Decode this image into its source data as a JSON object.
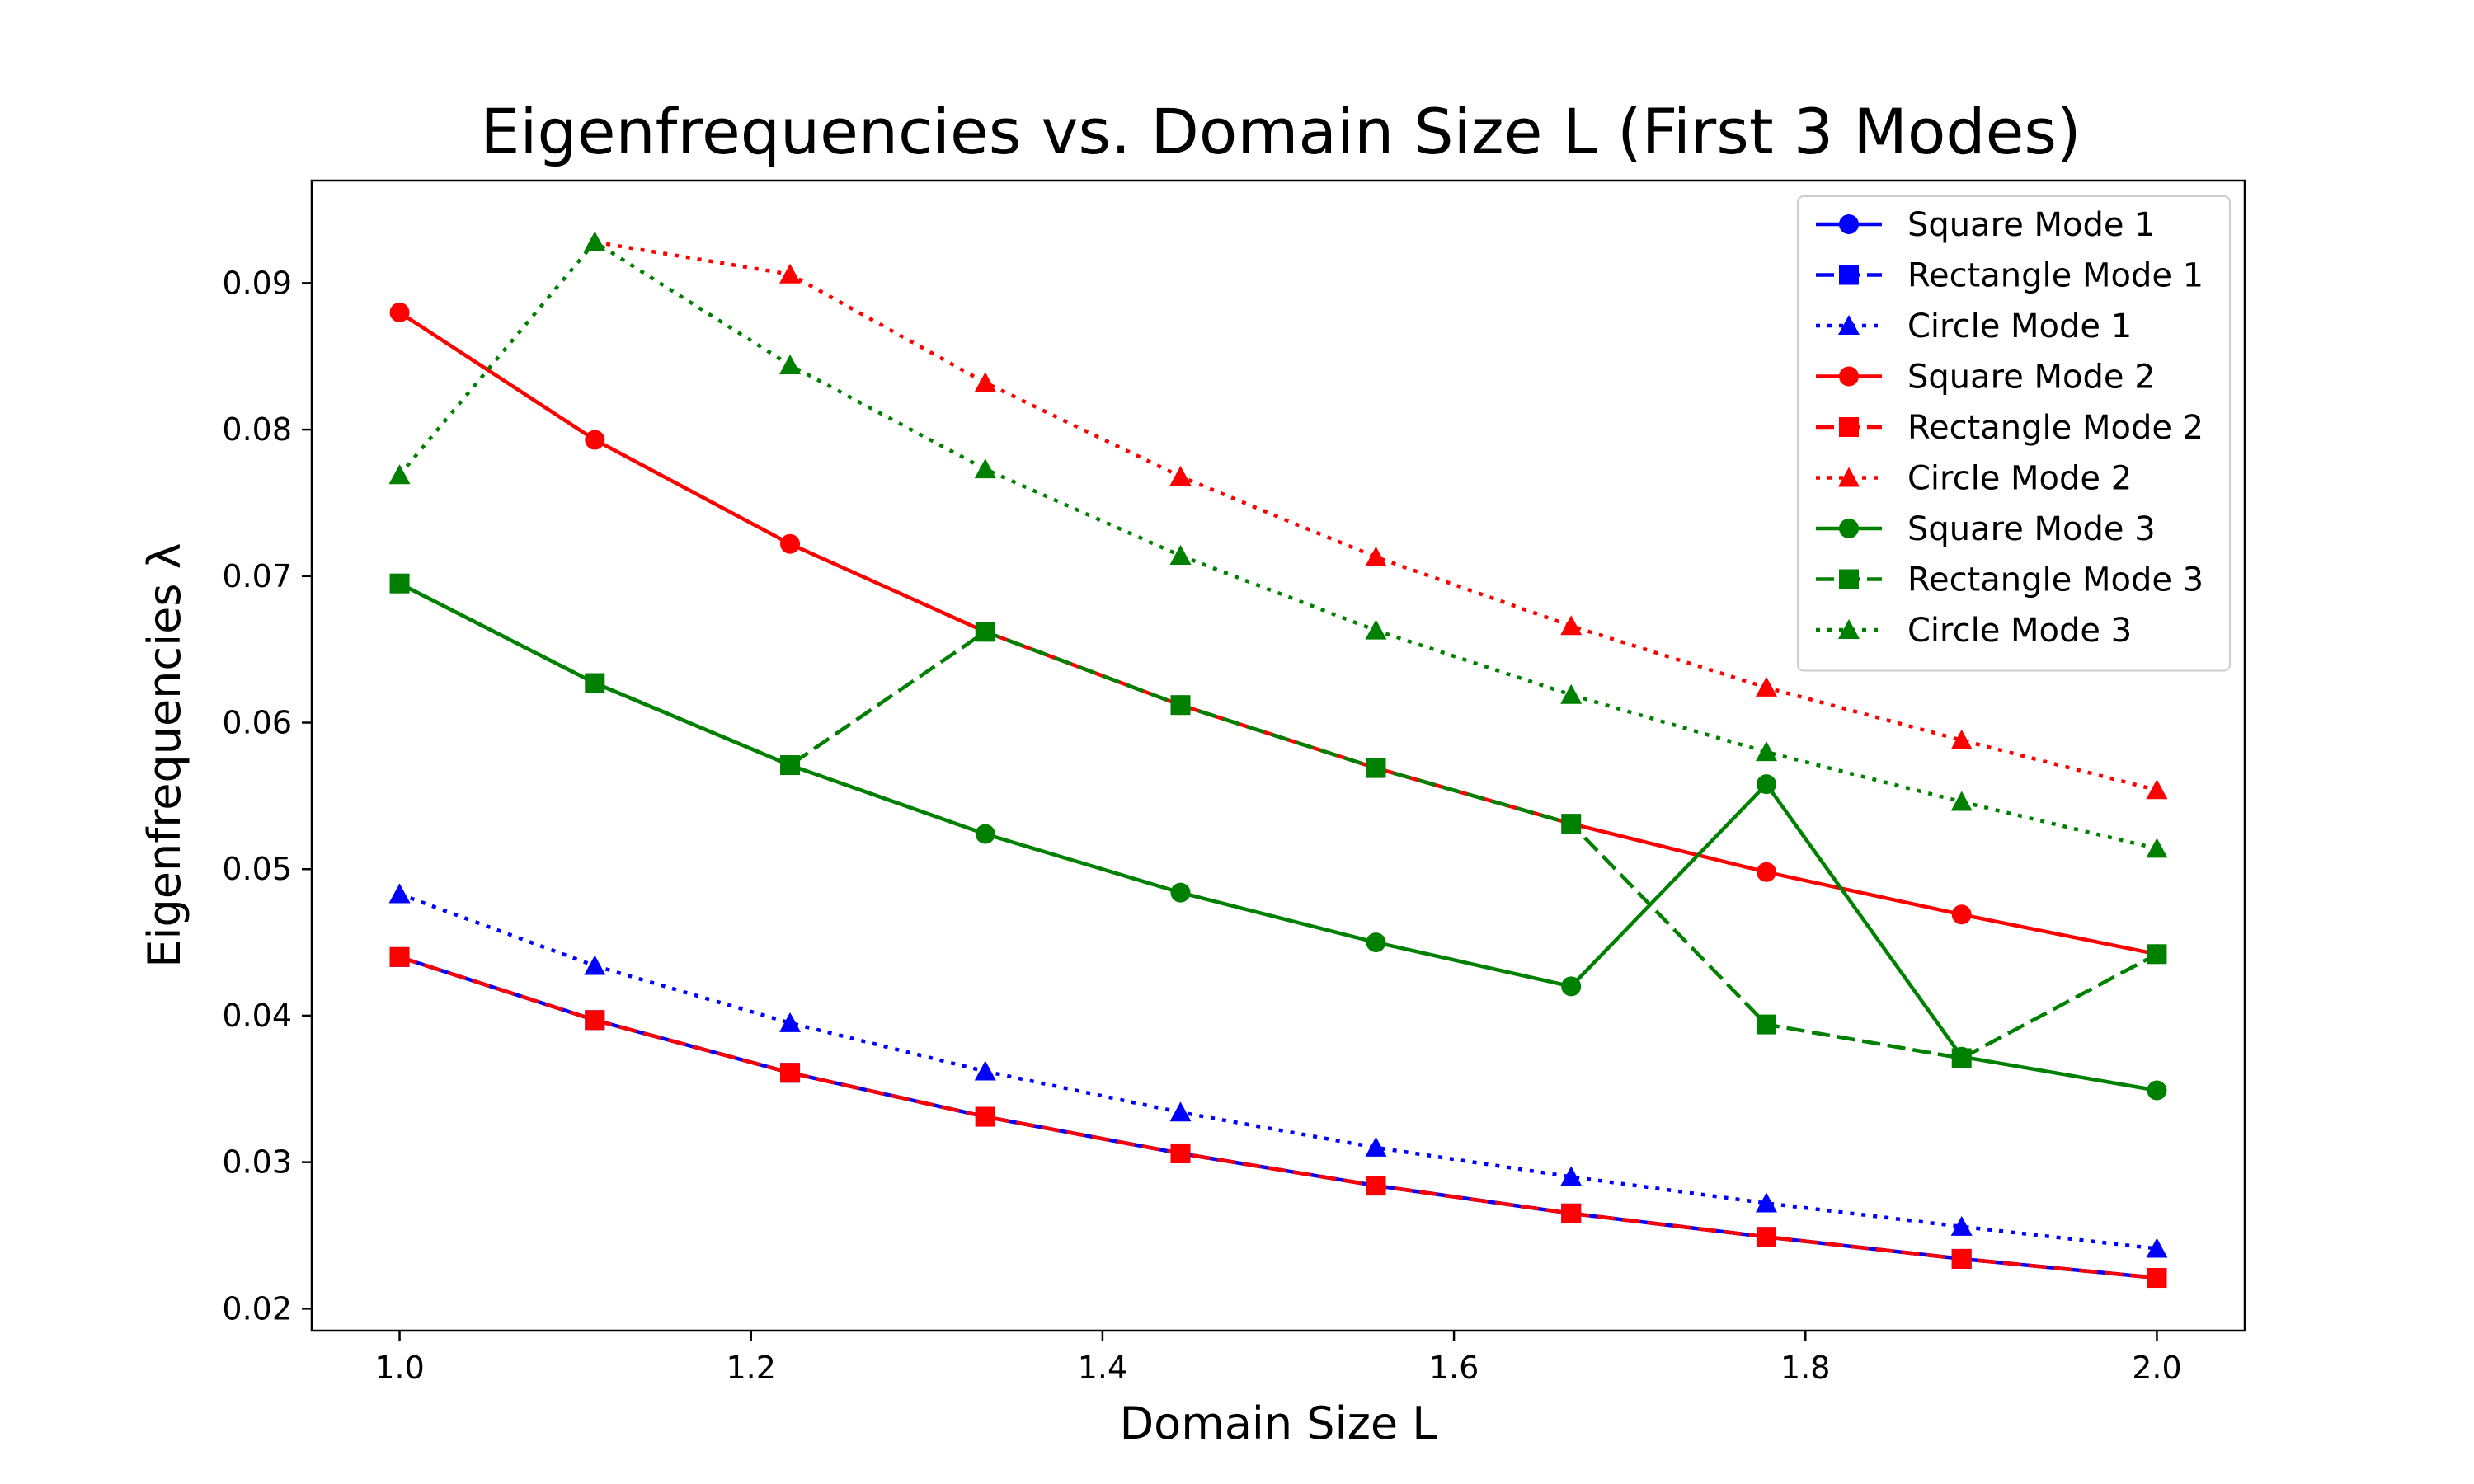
{
  "chart_data": {
    "type": "line",
    "title": "Eigenfrequencies vs. Domain Size L (First 3 Modes)",
    "xlabel": "Domain Size L",
    "ylabel": "Eigenfrequencies λ",
    "xlim": [
      0.95,
      2.05
    ],
    "ylim": [
      0.0185,
      0.097
    ],
    "xticks": [
      1.0,
      1.2,
      1.4,
      1.6,
      1.8,
      2.0
    ],
    "xtick_labels": [
      "1.0",
      "1.2",
      "1.4",
      "1.6",
      "1.8",
      "2.0"
    ],
    "yticks": [
      0.02,
      0.03,
      0.04,
      0.05,
      0.06,
      0.07,
      0.08,
      0.09
    ],
    "ytick_labels": [
      "0.02",
      "0.03",
      "0.04",
      "0.05",
      "0.06",
      "0.07",
      "0.08",
      "0.09"
    ],
    "grid": false,
    "legend_position": "top-right",
    "x": [
      1.0,
      1.1111,
      1.2222,
      1.3333,
      1.4444,
      1.5556,
      1.6667,
      1.7778,
      1.8889,
      2.0
    ],
    "series": [
      {
        "name": "Square Mode 1",
        "color": "#0000ff",
        "line_style": "solid",
        "marker": "circle",
        "values": [
          0.044,
          0.0397,
          0.0361,
          0.0331,
          0.0306,
          0.0284,
          0.0265,
          0.0249,
          0.0234,
          0.0221
        ]
      },
      {
        "name": "Rectangle Mode 1",
        "color": "#0000ff",
        "line_style": "dashed",
        "marker": "square",
        "values": [
          0.044,
          0.0397,
          0.0361,
          0.0331,
          0.0306,
          0.0284,
          0.0265,
          0.0249,
          0.0234,
          0.0221
        ]
      },
      {
        "name": "Circle Mode 1",
        "color": "#0000ff",
        "line_style": "dotted",
        "marker": "triangle",
        "values": [
          0.0483,
          0.0434,
          0.0395,
          0.0362,
          0.0334,
          0.031,
          0.029,
          0.0272,
          0.0256,
          0.0241
        ]
      },
      {
        "name": "Square Mode 2",
        "color": "#ff0000",
        "line_style": "solid",
        "marker": "circle",
        "values": [
          0.088,
          0.0793,
          0.0722,
          0.0662,
          0.0612,
          0.0569,
          0.0531,
          0.0498,
          0.0469,
          0.0442
        ]
      },
      {
        "name": "Rectangle Mode 2",
        "color": "#ff0000",
        "line_style": "dashed",
        "marker": "square",
        "values": [
          0.044,
          0.0397,
          0.0361,
          0.0331,
          0.0306,
          0.0284,
          0.0265,
          0.0249,
          0.0234,
          0.0221
        ]
      },
      {
        "name": "Circle Mode 2",
        "color": "#ff0000",
        "line_style": "dotted",
        "marker": "triangle",
        "values": [
          null,
          0.0928,
          0.0906,
          0.0832,
          0.0768,
          0.0713,
          0.0666,
          0.0624,
          0.0588,
          0.0554
        ]
      },
      {
        "name": "Square Mode 3",
        "color": "#008000",
        "line_style": "solid",
        "marker": "circle",
        "values": [
          0.0695,
          0.0627,
          0.0571,
          0.0524,
          0.0484,
          0.045,
          0.042,
          0.0558,
          0.0372,
          0.0349
        ]
      },
      {
        "name": "Rectangle Mode 3",
        "color": "#008000",
        "line_style": "dashed",
        "marker": "square",
        "values": [
          0.0695,
          0.0627,
          0.0571,
          0.0662,
          0.0612,
          0.0569,
          0.0531,
          0.0394,
          0.0371,
          0.0442
        ]
      },
      {
        "name": "Circle Mode 3",
        "color": "#008000",
        "line_style": "dotted",
        "marker": "triangle",
        "values": [
          0.0769,
          0.0928,
          0.0844,
          0.0773,
          0.0714,
          0.0663,
          0.0619,
          0.058,
          0.0546,
          0.0514
        ]
      }
    ]
  }
}
